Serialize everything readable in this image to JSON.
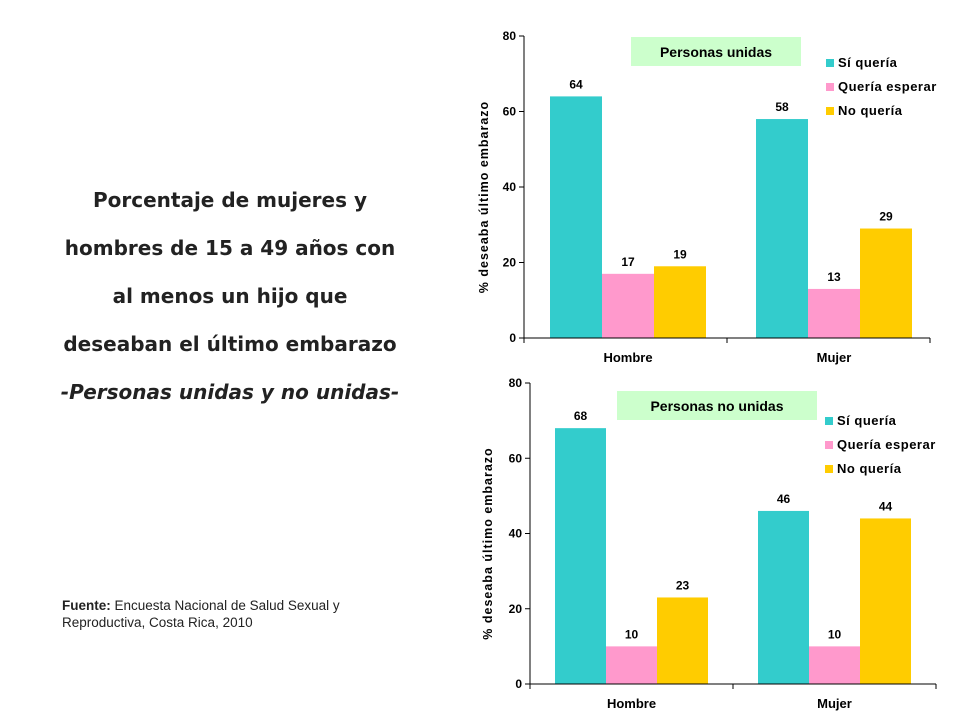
{
  "title": {
    "line1": "Porcentaje de mujeres y",
    "line2": "hombres de 15 a 49 años con",
    "line3": "al menos un hijo que",
    "line4": "deseaban el último embarazo",
    "line5": "-Personas unidas y no unidas-"
  },
  "source": {
    "label": "Fuente:",
    "text": " Encuesta Nacional de Salud Sexual y Reproductiva, Costa Rica, 2010"
  },
  "colors": {
    "si": "#33CCCC",
    "esperar": "#FF99CC",
    "no": "#FFCC00",
    "panel_title_bg": "#CCFFCC"
  },
  "chart_data": [
    {
      "type": "bar",
      "title": "Personas unidas",
      "ylabel": "% deseaba último embarazo",
      "ylim": [
        0,
        80
      ],
      "yticks": [
        0,
        20,
        40,
        60,
        80
      ],
      "categories": [
        "Hombre",
        "Mujer"
      ],
      "series": [
        {
          "name": "Sí quería",
          "values": [
            64,
            58
          ]
        },
        {
          "name": "Quería esperar",
          "values": [
            17,
            13
          ]
        },
        {
          "name": "No quería",
          "values": [
            19,
            29
          ]
        }
      ],
      "legend": "top-right",
      "grid": false
    },
    {
      "type": "bar",
      "title": "Personas no unidas",
      "ylabel": "% deseaba último embarazo",
      "ylim": [
        0,
        80
      ],
      "yticks": [
        0,
        20,
        40,
        60,
        80
      ],
      "categories": [
        "Hombre",
        "Mujer"
      ],
      "series": [
        {
          "name": "Sí quería",
          "values": [
            68,
            46
          ]
        },
        {
          "name": "Quería esperar",
          "values": [
            10,
            10
          ]
        },
        {
          "name": "No quería",
          "values": [
            23,
            44
          ]
        }
      ],
      "legend": "top-right",
      "grid": false
    }
  ]
}
